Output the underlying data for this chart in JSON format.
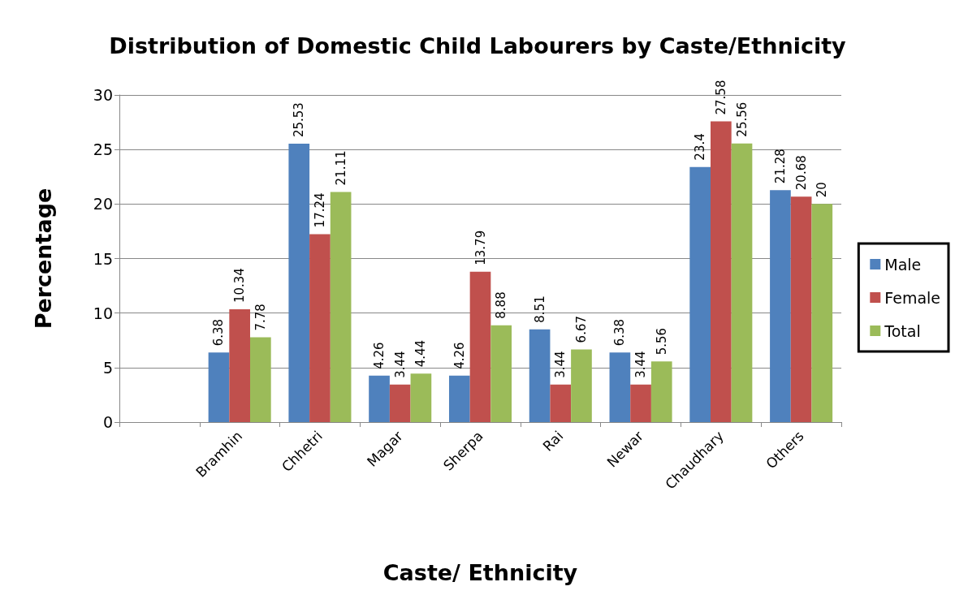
{
  "chart_data": {
    "type": "bar",
    "title": "Distribution of Domestic Child Labourers by Caste/Ethnicity",
    "xlabel": "Caste/ Ethnicity",
    "ylabel": "Percentage",
    "categories": [
      null,
      "Bramhin",
      "Chhetri",
      "Magar",
      "Sherpa",
      "Rai",
      "Newar",
      "Chaudhary",
      "Others"
    ],
    "series": [
      {
        "name": "Male",
        "color": "#4f81bd",
        "values": [
          null,
          6.38,
          25.53,
          4.26,
          4.26,
          8.51,
          6.38,
          23.4,
          21.28
        ]
      },
      {
        "name": "Female",
        "color": "#c0504d",
        "values": [
          null,
          10.34,
          17.24,
          3.44,
          13.79,
          3.44,
          3.44,
          27.58,
          20.68
        ]
      },
      {
        "name": "Total",
        "color": "#9bbb59",
        "values": [
          null,
          7.78,
          21.11,
          4.44,
          8.88,
          6.67,
          5.56,
          25.56,
          20
        ]
      }
    ],
    "ylim": [
      0,
      30
    ],
    "yticks": [
      0,
      5,
      10,
      15,
      20,
      25,
      30
    ],
    "grid": "y",
    "legend": "right",
    "data_labels": true
  }
}
